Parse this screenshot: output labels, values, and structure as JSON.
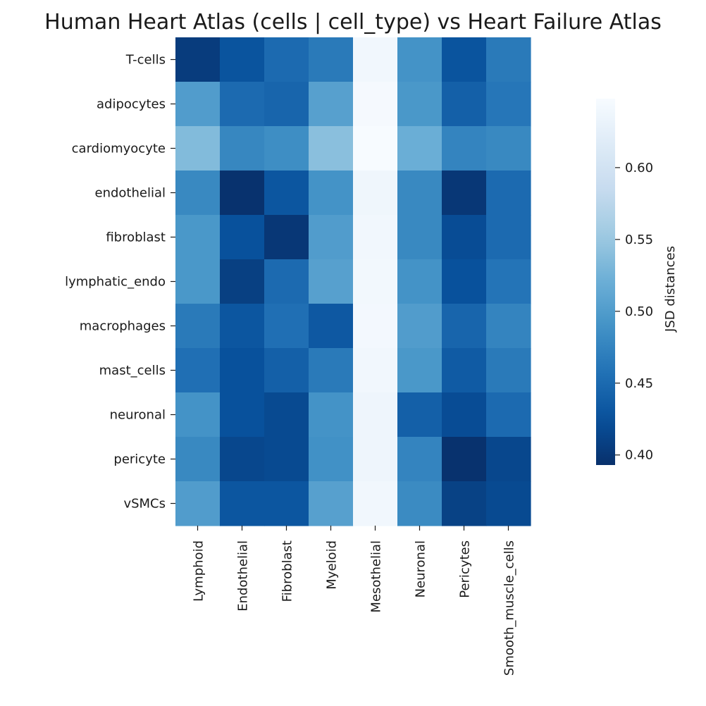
{
  "chart_data": {
    "type": "heatmap",
    "title": "Human Heart Atlas (cells | cell_type) vs Heart Failure Atlas",
    "xlabel": "",
    "ylabel": "",
    "x_categories": [
      "Lymphoid",
      "Endothelial",
      "Fibroblast",
      "Myeloid",
      "Mesothelial",
      "Neuronal",
      "Pericytes",
      "Smooth_muscle_cells"
    ],
    "y_categories": [
      "T-cells",
      "adipocytes",
      "cardiomyocyte",
      "endothelial",
      "fibroblast",
      "lymphatic_endo",
      "macrophages",
      "mast_cells",
      "neuronal",
      "pericyte",
      "vSMCs"
    ],
    "values": [
      [
        0.405,
        0.428,
        0.45,
        0.465,
        0.64,
        0.49,
        0.428,
        0.465
      ],
      [
        0.5,
        0.45,
        0.445,
        0.505,
        0.645,
        0.495,
        0.44,
        0.462
      ],
      [
        0.535,
        0.478,
        0.485,
        0.54,
        0.648,
        0.52,
        0.475,
        0.48
      ],
      [
        0.48,
        0.395,
        0.43,
        0.49,
        0.638,
        0.48,
        0.4,
        0.45
      ],
      [
        0.495,
        0.425,
        0.4,
        0.5,
        0.64,
        0.48,
        0.42,
        0.45
      ],
      [
        0.495,
        0.408,
        0.45,
        0.505,
        0.642,
        0.49,
        0.425,
        0.46
      ],
      [
        0.465,
        0.43,
        0.455,
        0.432,
        0.643,
        0.5,
        0.445,
        0.475
      ],
      [
        0.455,
        0.425,
        0.44,
        0.465,
        0.64,
        0.495,
        0.435,
        0.465
      ],
      [
        0.49,
        0.425,
        0.418,
        0.49,
        0.636,
        0.44,
        0.42,
        0.45
      ],
      [
        0.48,
        0.415,
        0.418,
        0.488,
        0.636,
        0.475,
        0.395,
        0.415
      ],
      [
        0.5,
        0.43,
        0.43,
        0.505,
        0.64,
        0.482,
        0.41,
        0.418
      ]
    ],
    "vmin": 0.393,
    "vmax": 0.648,
    "colormap": "Blues_r",
    "colorbar": {
      "label": "JSD distances",
      "ticks": [
        0.4,
        0.45,
        0.5,
        0.55,
        0.6
      ],
      "tick_labels": [
        "0.40",
        "0.45",
        "0.50",
        "0.55",
        "0.60"
      ]
    },
    "grid": false,
    "colors": {
      "low": "#08306b",
      "high": "#f7fbff",
      "text": "#1a1a1a",
      "tick": "#1a1a1a"
    }
  }
}
